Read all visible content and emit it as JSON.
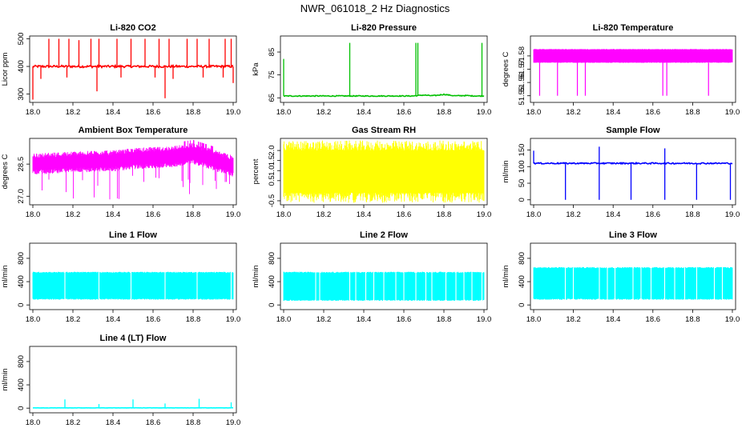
{
  "page_title": "NWR_061018_2 Hz Diagnostics",
  "chart_data": [
    {
      "id": "p1",
      "type": "line",
      "title": "Li-820 CO2",
      "ylabel": "Licor ppm",
      "xlim": [
        18.0,
        19.0
      ],
      "ylim": [
        270,
        510
      ],
      "xticks": [
        18.0,
        18.2,
        18.4,
        18.6,
        18.8,
        19.0
      ],
      "xtick_labels": [
        "18.0",
        "18.2",
        "18.4",
        "18.6",
        "18.8",
        "19.0"
      ],
      "yticks": [
        300,
        400,
        500
      ],
      "ytick_labels": [
        "300",
        "400",
        "500"
      ],
      "color": "#ff0000",
      "series": [
        {
          "baseline": 400,
          "noise": 4,
          "spikes_up": [
            {
              "x": 18.08,
              "y": 500
            },
            {
              "x": 18.13,
              "y": 500
            },
            {
              "x": 18.18,
              "y": 500
            },
            {
              "x": 18.23,
              "y": 495
            },
            {
              "x": 18.29,
              "y": 500
            },
            {
              "x": 18.33,
              "y": 500
            },
            {
              "x": 18.42,
              "y": 500
            },
            {
              "x": 18.49,
              "y": 500
            },
            {
              "x": 18.56,
              "y": 500
            },
            {
              "x": 18.63,
              "y": 500
            },
            {
              "x": 18.68,
              "y": 500
            },
            {
              "x": 18.77,
              "y": 500
            },
            {
              "x": 18.82,
              "y": 500
            },
            {
              "x": 18.88,
              "y": 500
            },
            {
              "x": 18.96,
              "y": 500
            },
            {
              "x": 18.99,
              "y": 500
            }
          ],
          "spikes_down": [
            {
              "x": 18.0,
              "y": 280
            },
            {
              "x": 18.04,
              "y": 355
            },
            {
              "x": 18.17,
              "y": 360
            },
            {
              "x": 18.32,
              "y": 310
            },
            {
              "x": 18.44,
              "y": 360
            },
            {
              "x": 18.61,
              "y": 360
            },
            {
              "x": 18.66,
              "y": 285
            },
            {
              "x": 18.7,
              "y": 355
            },
            {
              "x": 18.85,
              "y": 360
            },
            {
              "x": 18.95,
              "y": 360
            },
            {
              "x": 19.0,
              "y": 340
            }
          ]
        }
      ]
    },
    {
      "id": "p2",
      "type": "line",
      "title": "Li-820 Pressure",
      "ylabel": "kPa",
      "xlim": [
        18.0,
        19.0
      ],
      "ylim": [
        63,
        92
      ],
      "xticks": [
        18.0,
        18.2,
        18.4,
        18.6,
        18.8,
        19.0
      ],
      "xtick_labels": [
        "18.0",
        "18.2",
        "18.4",
        "18.6",
        "18.8",
        "19.0"
      ],
      "yticks": [
        65,
        75,
        85
      ],
      "ytick_labels": [
        "65",
        "75",
        "85"
      ],
      "color": "#00c000",
      "series": [
        {
          "baseline": 65.8,
          "noise": 0.2,
          "drift": [
            {
              "x": 18.7,
              "y": 66.2
            },
            {
              "x": 18.8,
              "y": 66.5
            },
            {
              "x": 18.9,
              "y": 66.0
            }
          ],
          "spikes_up": [
            {
              "x": 18.0,
              "y": 82
            },
            {
              "x": 18.33,
              "y": 89
            },
            {
              "x": 18.66,
              "y": 89
            },
            {
              "x": 18.67,
              "y": 89
            },
            {
              "x": 18.99,
              "y": 89
            }
          ],
          "spikes_down": []
        }
      ]
    },
    {
      "id": "p3",
      "type": "area",
      "title": "Li-820 Temperature",
      "ylabel": "degrees C",
      "xlim": [
        18.0,
        19.0
      ],
      "ylim": [
        51.545,
        51.595
      ],
      "xticks": [
        18.0,
        18.2,
        18.4,
        18.6,
        18.8,
        19.0
      ],
      "xtick_labels": [
        "18.0",
        "18.2",
        "18.4",
        "18.6",
        "18.8",
        "19.0"
      ],
      "yticks": [
        51.55,
        51.56,
        51.57,
        51.58
      ],
      "ytick_labels": [
        "51.55",
        "51.56",
        "51.57",
        "51.58"
      ],
      "color": "#ff00ff",
      "series": [
        {
          "band_low": 51.575,
          "band_high": 51.585,
          "dips": [
            {
              "x": 18.03,
              "y": 51.55
            },
            {
              "x": 18.12,
              "y": 51.55
            },
            {
              "x": 18.22,
              "y": 51.55
            },
            {
              "x": 18.26,
              "y": 51.55
            },
            {
              "x": 18.65,
              "y": 51.55
            },
            {
              "x": 18.67,
              "y": 51.55
            },
            {
              "x": 18.88,
              "y": 51.55
            }
          ]
        }
      ]
    },
    {
      "id": "p4",
      "type": "line",
      "title": "Ambient Box Temperature",
      "ylabel": "degrees C",
      "xlim": [
        18.0,
        19.0
      ],
      "ylim": [
        26.6,
        29.7
      ],
      "xticks": [
        18.0,
        18.2,
        18.4,
        18.6,
        18.8,
        19.0
      ],
      "xtick_labels": [
        "18.0",
        "18.2",
        "18.4",
        "18.6",
        "18.8",
        "19.0"
      ],
      "yticks": [
        27.0,
        28.5
      ],
      "ytick_labels": [
        "27.0",
        "28.5"
      ],
      "color": "#ff00ff",
      "series": [
        {
          "center_points": [
            {
              "x": 18.0,
              "y": 28.5
            },
            {
              "x": 18.2,
              "y": 28.6
            },
            {
              "x": 18.4,
              "y": 28.65
            },
            {
              "x": 18.5,
              "y": 28.75
            },
            {
              "x": 18.6,
              "y": 28.8
            },
            {
              "x": 18.7,
              "y": 28.85
            },
            {
              "x": 18.8,
              "y": 29.0
            },
            {
              "x": 18.9,
              "y": 28.7
            },
            {
              "x": 19.0,
              "y": 28.4
            }
          ],
          "spread": 0.45,
          "spike_low": 26.8,
          "spike_high": 29.5
        }
      ]
    },
    {
      "id": "p5",
      "type": "line",
      "title": "Gas Stream RH",
      "ylabel": "percent",
      "xlim": [
        18.0,
        19.0
      ],
      "ylim": [
        -0.7,
        2.6
      ],
      "xticks": [
        18.0,
        18.2,
        18.4,
        18.6,
        18.8,
        19.0
      ],
      "xtick_labels": [
        "18.0",
        "18.2",
        "18.4",
        "18.6",
        "18.8",
        "19.0"
      ],
      "yticks": [
        -0.5,
        0.5,
        1.0,
        1.5,
        2.0
      ],
      "ytick_labels": [
        "-0.5",
        "0.5",
        "1.0",
        "1.5",
        "2.0"
      ],
      "color": "#ffff00",
      "series": [
        {
          "band_low": -0.6,
          "band_high": 2.5,
          "core_low": -0.1,
          "core_high": 2.0
        }
      ]
    },
    {
      "id": "p6",
      "type": "line",
      "title": "Sample Flow",
      "ylabel": "ml/min",
      "xlim": [
        18.0,
        19.0
      ],
      "ylim": [
        -15,
        185
      ],
      "xticks": [
        18.0,
        18.2,
        18.4,
        18.6,
        18.8,
        19.0
      ],
      "xtick_labels": [
        "18.0",
        "18.2",
        "18.4",
        "18.6",
        "18.8",
        "19.0"
      ],
      "yticks": [
        0,
        50,
        100,
        150
      ],
      "ytick_labels": [
        "0",
        "50",
        "100",
        "150"
      ],
      "color": "#0000ff",
      "series": [
        {
          "baseline": 110,
          "noise": 2,
          "spikes_up": [
            {
              "x": 18.0,
              "y": 148
            },
            {
              "x": 18.33,
              "y": 160
            },
            {
              "x": 18.66,
              "y": 155
            }
          ],
          "spikes_down": [
            {
              "x": 18.16,
              "y": 0
            },
            {
              "x": 18.33,
              "y": 0
            },
            {
              "x": 18.49,
              "y": 0
            },
            {
              "x": 18.66,
              "y": 0
            },
            {
              "x": 18.82,
              "y": 0
            },
            {
              "x": 18.99,
              "y": 0
            }
          ]
        }
      ]
    },
    {
      "id": "p7",
      "type": "area",
      "title": "Line 1 Flow",
      "ylabel": "ml/min",
      "xlim": [
        18.0,
        19.0
      ],
      "ylim": [
        -80,
        1060
      ],
      "xticks": [
        18.0,
        18.2,
        18.4,
        18.6,
        18.8,
        19.0
      ],
      "xtick_labels": [
        "18.0",
        "18.2",
        "18.4",
        "18.6",
        "18.8",
        "19.0"
      ],
      "yticks": [
        0,
        400,
        800
      ],
      "ytick_labels": [
        "0",
        "400",
        "800"
      ],
      "color": "#00ffff",
      "series": [
        {
          "band_low": 100,
          "band_high": 560,
          "gaps": [
            18.16,
            18.33,
            18.49,
            18.66,
            18.82,
            18.99
          ]
        }
      ]
    },
    {
      "id": "p8",
      "type": "area",
      "title": "Line 2 Flow",
      "ylabel": "ml/min",
      "xlim": [
        18.0,
        19.0
      ],
      "ylim": [
        -80,
        1060
      ],
      "xticks": [
        18.0,
        18.2,
        18.4,
        18.6,
        18.8,
        19.0
      ],
      "xtick_labels": [
        "18.0",
        "18.2",
        "18.4",
        "18.6",
        "18.8",
        "19.0"
      ],
      "yticks": [
        0,
        400,
        800
      ],
      "ytick_labels": [
        "0",
        "400",
        "800"
      ],
      "color": "#00ffff",
      "series": [
        {
          "band_low": 80,
          "band_high": 560,
          "gaps": [
            18.16,
            18.18,
            18.33,
            18.36,
            18.41,
            18.45,
            18.5,
            18.56,
            18.6,
            18.66,
            18.71,
            18.74,
            18.81,
            18.86,
            18.9,
            18.94,
            18.99
          ]
        }
      ]
    },
    {
      "id": "p9",
      "type": "area",
      "title": "Line 3 Flow",
      "ylabel": "ml/min",
      "xlim": [
        18.0,
        19.0
      ],
      "ylim": [
        -80,
        1060
      ],
      "xticks": [
        18.0,
        18.2,
        18.4,
        18.6,
        18.8,
        19.0
      ],
      "xtick_labels": [
        "18.0",
        "18.2",
        "18.4",
        "18.6",
        "18.8",
        "19.0"
      ],
      "yticks": [
        0,
        400,
        800
      ],
      "ytick_labels": [
        "0",
        "400",
        "800"
      ],
      "color": "#00ffff",
      "series": [
        {
          "band_low": 100,
          "band_high": 640,
          "gaps": [
            18.16,
            18.2,
            18.33,
            18.37,
            18.41,
            18.5,
            18.54,
            18.59,
            18.66,
            18.71,
            18.76,
            18.82,
            18.91,
            18.95
          ]
        }
      ]
    },
    {
      "id": "p10",
      "type": "line",
      "title": "Line 4 (LT) Flow",
      "ylabel": "ml/min",
      "xlim": [
        18.0,
        19.0
      ],
      "ylim": [
        -80,
        1060
      ],
      "xticks": [
        18.0,
        18.2,
        18.4,
        18.6,
        18.8,
        19.0
      ],
      "xtick_labels": [
        "18.0",
        "18.2",
        "18.4",
        "18.6",
        "18.8",
        "19.0"
      ],
      "yticks": [
        0,
        400,
        800
      ],
      "ytick_labels": [
        "0",
        "400",
        "800"
      ],
      "color": "#00ffff",
      "series": [
        {
          "baseline": 5,
          "noise": 2,
          "spikes_up": [
            {
              "x": 18.16,
              "y": 150
            },
            {
              "x": 18.33,
              "y": 70
            },
            {
              "x": 18.5,
              "y": 150
            },
            {
              "x": 18.66,
              "y": 80
            },
            {
              "x": 18.83,
              "y": 160
            },
            {
              "x": 18.99,
              "y": 100
            }
          ],
          "spikes_down": []
        }
      ]
    }
  ]
}
